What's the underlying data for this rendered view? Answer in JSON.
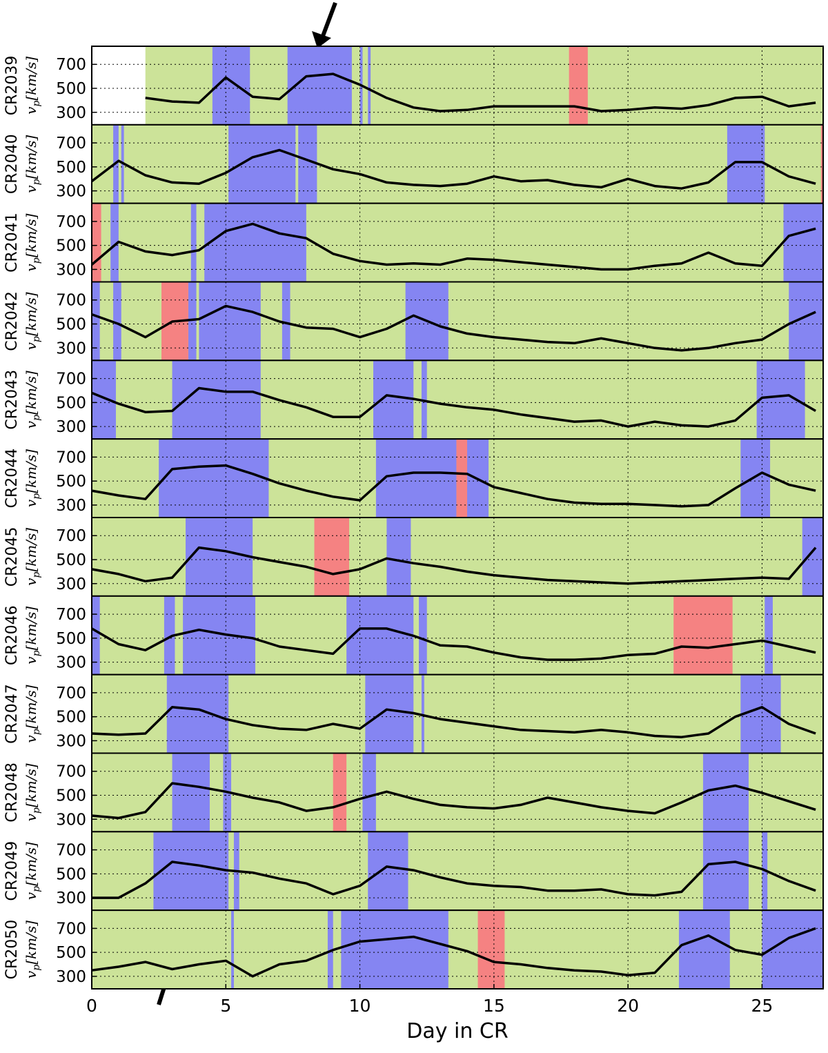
{
  "chart_data": {
    "type": "line",
    "xlabel": "Day in CR",
    "ylabel": {
      "symbol": "v",
      "subscript": "p",
      "unit": "[km/s]"
    },
    "xlim": [
      0,
      27.28
    ],
    "xticks": [
      0,
      5,
      10,
      15,
      20,
      25
    ],
    "ylim": [
      196,
      851
    ],
    "yticks": [
      300,
      500,
      700
    ],
    "grid": true,
    "colors": {
      "background": "#cce399",
      "blue": "#8585f2",
      "red": "#f58282",
      "gap": "#ffffff",
      "line": "#000000"
    },
    "x": [
      0,
      1,
      2,
      3,
      4,
      5,
      6,
      7,
      8,
      9,
      10,
      11,
      12,
      13,
      14,
      15,
      16,
      17,
      18,
      19,
      20,
      21,
      22,
      23,
      24,
      25,
      26,
      27
    ],
    "panels": [
      {
        "name": "CR2039",
        "values": [
          null,
          null,
          420,
          390,
          380,
          590,
          430,
          410,
          600,
          620,
          530,
          420,
          340,
          310,
          320,
          350,
          350,
          350,
          350,
          310,
          320,
          340,
          330,
          360,
          420,
          430,
          350,
          380
        ],
        "blue": [
          [
            4.5,
            5.9
          ],
          [
            7.3,
            9.7
          ],
          [
            10.0,
            10.1
          ],
          [
            10.3,
            10.4
          ]
        ],
        "red": [
          [
            17.8,
            18.5
          ]
        ],
        "gaps": [
          [
            0,
            2
          ]
        ]
      },
      {
        "name": "CR2040",
        "values": [
          380,
          550,
          430,
          370,
          360,
          450,
          580,
          640,
          560,
          480,
          440,
          370,
          350,
          340,
          360,
          420,
          380,
          390,
          350,
          330,
          400,
          340,
          320,
          370,
          540,
          540,
          420,
          360
        ],
        "blue": [
          [
            0.8,
            1.0
          ],
          [
            1.1,
            1.2
          ],
          [
            5.1,
            7.6
          ],
          [
            7.7,
            8.4
          ],
          [
            23.7,
            25.1
          ]
        ],
        "red": [
          [
            27.2,
            27.28
          ]
        ],
        "gaps": []
      },
      {
        "name": "CR2041",
        "values": [
          340,
          530,
          450,
          420,
          460,
          620,
          680,
          600,
          560,
          430,
          370,
          340,
          350,
          340,
          390,
          380,
          360,
          340,
          320,
          300,
          300,
          330,
          350,
          440,
          350,
          330,
          580,
          640
        ],
        "blue": [
          [
            0.7,
            1.0
          ],
          [
            3.7,
            3.9
          ],
          [
            4.2,
            8.0
          ],
          [
            25.8,
            27.28
          ]
        ],
        "red": [
          [
            0,
            0.35
          ]
        ],
        "gaps": []
      },
      {
        "name": "CR2042",
        "values": [
          580,
          500,
          390,
          520,
          540,
          650,
          600,
          520,
          470,
          460,
          390,
          460,
          570,
          480,
          420,
          390,
          370,
          350,
          340,
          380,
          340,
          300,
          280,
          300,
          340,
          370,
          500,
          600
        ],
        "blue": [
          [
            0,
            0.3
          ],
          [
            0.8,
            1.1
          ],
          [
            3.6,
            3.9
          ],
          [
            4.0,
            6.3
          ],
          [
            7.1,
            7.4
          ],
          [
            11.7,
            13.3
          ],
          [
            26.0,
            27.28
          ]
        ],
        "red": [
          [
            2.6,
            3.6
          ]
        ],
        "gaps": []
      },
      {
        "name": "CR2043",
        "values": [
          580,
          490,
          420,
          430,
          620,
          590,
          590,
          520,
          460,
          380,
          380,
          560,
          530,
          490,
          460,
          440,
          400,
          370,
          340,
          350,
          300,
          340,
          310,
          300,
          350,
          540,
          560,
          430
        ],
        "blue": [
          [
            0,
            0.9
          ],
          [
            3.0,
            6.3
          ],
          [
            10.5,
            12.0
          ],
          [
            12.3,
            12.5
          ],
          [
            24.8,
            26.6
          ]
        ],
        "red": [],
        "gaps": []
      },
      {
        "name": "CR2044",
        "values": [
          420,
          380,
          350,
          600,
          620,
          630,
          560,
          480,
          420,
          370,
          340,
          540,
          570,
          570,
          560,
          450,
          400,
          350,
          320,
          310,
          310,
          300,
          290,
          300,
          440,
          570,
          470,
          420
        ],
        "blue": [
          [
            2.5,
            6.6
          ],
          [
            10.6,
            13.6
          ],
          [
            14.0,
            14.8
          ],
          [
            24.2,
            25.3
          ]
        ],
        "red": [
          [
            13.6,
            14.0
          ]
        ],
        "gaps": []
      },
      {
        "name": "CR2045",
        "values": [
          420,
          380,
          320,
          350,
          600,
          570,
          520,
          480,
          440,
          380,
          420,
          510,
          470,
          440,
          400,
          370,
          350,
          330,
          320,
          310,
          300,
          310,
          320,
          330,
          340,
          350,
          340,
          600
        ],
        "blue": [
          [
            3.5,
            6.0
          ],
          [
            11.0,
            11.9
          ],
          [
            26.5,
            27.28
          ]
        ],
        "red": [
          [
            8.3,
            9.6
          ]
        ],
        "gaps": []
      },
      {
        "name": "CR2046",
        "values": [
          580,
          450,
          400,
          520,
          570,
          530,
          500,
          430,
          400,
          370,
          580,
          580,
          520,
          440,
          430,
          380,
          340,
          320,
          320,
          330,
          360,
          370,
          430,
          420,
          450,
          480,
          430,
          380
        ],
        "blue": [
          [
            0,
            0.3
          ],
          [
            2.7,
            3.1
          ],
          [
            3.4,
            6.1
          ],
          [
            9.5,
            12.0
          ],
          [
            12.2,
            12.5
          ],
          [
            25.1,
            25.4
          ]
        ],
        "red": [
          [
            21.7,
            23.9
          ]
        ],
        "gaps": []
      },
      {
        "name": "CR2047",
        "values": [
          360,
          350,
          360,
          580,
          560,
          480,
          430,
          400,
          390,
          440,
          400,
          560,
          530,
          480,
          450,
          420,
          390,
          380,
          370,
          390,
          370,
          340,
          330,
          360,
          500,
          580,
          440,
          360
        ],
        "blue": [
          [
            2.8,
            5.1
          ],
          [
            10.2,
            12.0
          ],
          [
            12.3,
            12.4
          ],
          [
            24.2,
            25.7
          ]
        ],
        "red": [],
        "gaps": []
      },
      {
        "name": "CR2048",
        "values": [
          330,
          310,
          360,
          600,
          570,
          530,
          480,
          440,
          370,
          400,
          470,
          530,
          470,
          420,
          400,
          390,
          420,
          480,
          440,
          400,
          370,
          350,
          440,
          540,
          580,
          520,
          450,
          380
        ],
        "blue": [
          [
            3.0,
            4.4
          ],
          [
            4.9,
            5.2
          ],
          [
            10.1,
            10.6
          ],
          [
            22.8,
            24.5
          ]
        ],
        "red": [
          [
            9.0,
            9.5
          ]
        ],
        "gaps": []
      },
      {
        "name": "CR2049",
        "values": [
          300,
          300,
          420,
          600,
          570,
          530,
          510,
          460,
          420,
          330,
          400,
          560,
          530,
          470,
          420,
          400,
          390,
          360,
          360,
          370,
          330,
          320,
          350,
          580,
          600,
          540,
          440,
          360
        ],
        "blue": [
          [
            2.3,
            5.1
          ],
          [
            5.3,
            5.5
          ],
          [
            10.3,
            11.8
          ],
          [
            22.8,
            24.5
          ],
          [
            25.0,
            25.2
          ]
        ],
        "red": [],
        "gaps": []
      },
      {
        "name": "CR2050",
        "values": [
          350,
          380,
          420,
          360,
          400,
          430,
          300,
          400,
          430,
          520,
          590,
          610,
          630,
          570,
          510,
          420,
          400,
          370,
          350,
          340,
          310,
          330,
          560,
          640,
          520,
          480,
          620,
          700
        ],
        "blue": [
          [
            5.2,
            5.3
          ],
          [
            8.8,
            9.0
          ],
          [
            9.3,
            13.3
          ],
          [
            21.9,
            23.8
          ],
          [
            25.0,
            27.28
          ]
        ],
        "red": [
          [
            14.4,
            15.4
          ]
        ],
        "gaps": []
      }
    ]
  }
}
